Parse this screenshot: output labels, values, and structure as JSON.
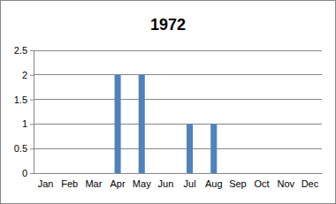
{
  "chart_data": {
    "type": "bar",
    "title": "1972",
    "categories": [
      "Jan",
      "Feb",
      "Mar",
      "Apr",
      "May",
      "Jun",
      "Jul",
      "Aug",
      "Sep",
      "Oct",
      "Nov",
      "Dec"
    ],
    "values": [
      0,
      0,
      0,
      2,
      2,
      0,
      1,
      1,
      0,
      0,
      0,
      0
    ],
    "color": "#4f81bd",
    "ylim": [
      0,
      2.5
    ],
    "yticks": [
      0,
      0.5,
      1,
      1.5,
      2,
      2.5
    ],
    "grid": true
  }
}
